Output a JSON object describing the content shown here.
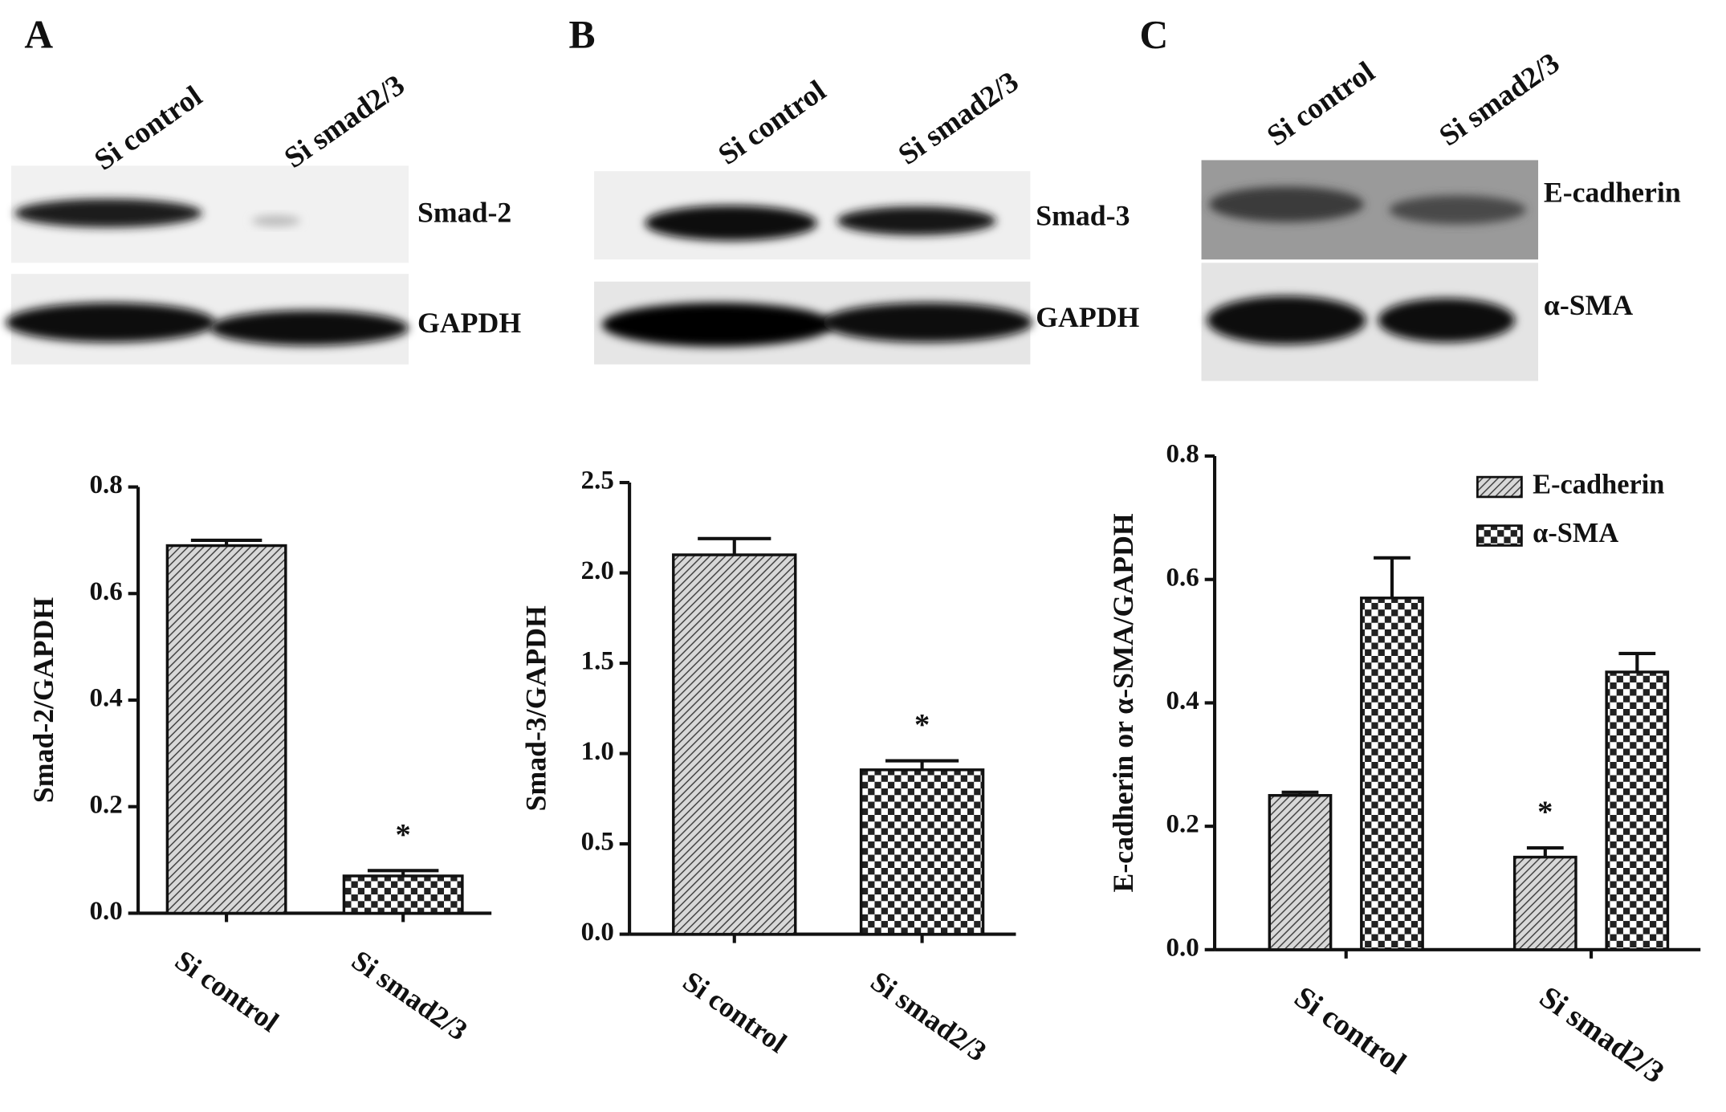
{
  "chart_data": [
    {
      "type": "bar",
      "panel": "A",
      "blot_lanes": [
        "Si control",
        "Si smad2/3"
      ],
      "blot_bands": [
        "Smad-2",
        "GAPDH"
      ],
      "ylabel": "Smad-2/GAPDH",
      "categories": [
        "Si control",
        "Si smad2/3"
      ],
      "values": [
        0.69,
        0.07
      ],
      "errors": [
        0.01,
        0.01
      ],
      "patterns": [
        "hatch",
        "checker"
      ],
      "value_annotations": [
        null,
        "*"
      ],
      "ylim": [
        0,
        0.8
      ],
      "yticks": [
        {
          "value": 0,
          "label": "0.0"
        },
        0.2,
        0.4,
        0.6,
        0.8
      ]
    },
    {
      "type": "bar",
      "panel": "B",
      "blot_lanes": [
        "Si control",
        "Si smad2/3"
      ],
      "blot_bands": [
        "Smad-3",
        "GAPDH"
      ],
      "ylabel": "Smad-3/GAPDH",
      "categories": [
        "Si control",
        "Si smad2/3"
      ],
      "values": [
        2.1,
        0.91
      ],
      "errors": [
        0.09,
        0.05
      ],
      "patterns": [
        "hatch",
        "checker"
      ],
      "value_annotations": [
        null,
        "*"
      ],
      "ylim": [
        0,
        2.5
      ],
      "yticks": [
        {
          "value": 0,
          "label": "0.0"
        },
        0.5,
        {
          "value": 1,
          "label": "1.0"
        },
        1.5,
        {
          "value": 2,
          "label": "2.0"
        },
        2.5
      ]
    },
    {
      "type": "grouped_bar",
      "panel": "C",
      "blot_lanes": [
        "Si control",
        "Si smad2/3"
      ],
      "blot_bands": [
        "E-cadherin",
        "α-SMA"
      ],
      "ylabel": "E-cadherin or α-SMA/GAPDH",
      "categories": [
        "Si control",
        "Si smad2/3"
      ],
      "series": [
        {
          "name": "E-cadherin",
          "pattern": "hatch",
          "values": [
            0.25,
            0.15
          ],
          "errors": [
            0.005,
            0.015
          ],
          "value_annotations": [
            null,
            "*"
          ]
        },
        {
          "name": "α-SMA",
          "pattern": "checker",
          "values": [
            0.57,
            0.45
          ],
          "errors": [
            0.065,
            0.03
          ]
        }
      ],
      "legend": "upper right",
      "ylim": [
        0,
        0.8
      ],
      "yticks": [
        {
          "value": 0,
          "label": "0.0"
        },
        0.2,
        0.4,
        0.6,
        0.8
      ]
    }
  ]
}
